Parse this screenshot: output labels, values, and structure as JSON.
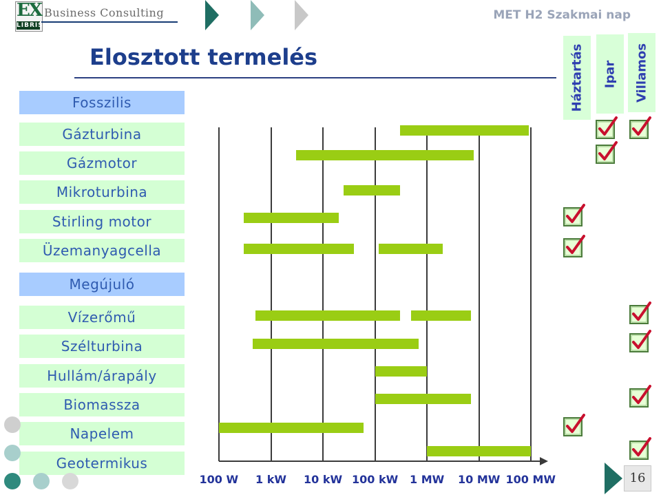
{
  "header": {
    "logo_letters": "EX",
    "logo_sub": "LIBRIS",
    "company": "Business Consulting",
    "meeting": "MET H2 Szakmai nap"
  },
  "title": "Elosztott termelés",
  "columns": [
    "Háztartás",
    "Ipar",
    "Villamos"
  ],
  "page_number": "16",
  "colors": {
    "bar": "#9acd14",
    "title": "#1d3e8c",
    "category_blue": "#a8ccff",
    "category_green": "#d4ffd4",
    "check": "#c8102e"
  },
  "chart_data": {
    "type": "bar",
    "orientation": "horizontal-range",
    "title": "Elosztott termelés",
    "xlabel": "",
    "ylabel": "",
    "x_scale": "log10",
    "xlim_watts": [
      100,
      100000000
    ],
    "tick_labels": [
      "100 W",
      "1 kW",
      "10 kW",
      "100 kW",
      "1 MW",
      "10 MW",
      "100 MW"
    ],
    "groups": [
      {
        "name": "Fosszilis",
        "items": [
          {
            "name": "Gázturbina",
            "ranges": [
              [
                300000,
                90000000
              ]
            ],
            "checks": [
              false,
              true,
              true
            ]
          },
          {
            "name": "Gázmotor",
            "ranges": [
              [
                3000,
                8000000
              ]
            ],
            "checks": [
              false,
              true,
              false
            ]
          },
          {
            "name": "Mikroturbina",
            "ranges": [
              [
                25000,
                300000
              ]
            ],
            "checks": [
              false,
              false,
              false
            ]
          },
          {
            "name": "Stirling motor",
            "ranges": [
              [
                300,
                20000
              ]
            ],
            "checks": [
              true,
              false,
              false
            ]
          },
          {
            "name": "Üzemanyagcella",
            "ranges": [
              [
                300,
                40000
              ],
              [
                120000,
                2000000
              ]
            ],
            "checks": [
              true,
              false,
              false
            ]
          }
        ]
      },
      {
        "name": "Megújuló",
        "items": [
          {
            "name": "Vízerőmű",
            "ranges": [
              [
                500,
                300000
              ],
              [
                500000,
                7000000
              ]
            ],
            "checks": [
              false,
              false,
              true
            ]
          },
          {
            "name": "Szélturbina",
            "ranges": [
              [
                450,
                700000
              ]
            ],
            "checks": [
              false,
              false,
              true
            ]
          },
          {
            "name": "Hullám/árapály",
            "ranges": [
              [
                100000,
                1000000
              ]
            ],
            "checks": [
              false,
              false,
              false
            ]
          },
          {
            "name": "Biomassza",
            "ranges": [
              [
                100000,
                7000000
              ]
            ],
            "checks": [
              false,
              false,
              true
            ]
          },
          {
            "name": "Napelem",
            "ranges": [
              [
                100,
                60000
              ]
            ],
            "checks": [
              true,
              false,
              false
            ]
          },
          {
            "name": "Geotermikus",
            "ranges": [
              [
                1000000,
                100000000
              ]
            ],
            "checks": [
              false,
              false,
              true
            ]
          }
        ]
      }
    ]
  }
}
